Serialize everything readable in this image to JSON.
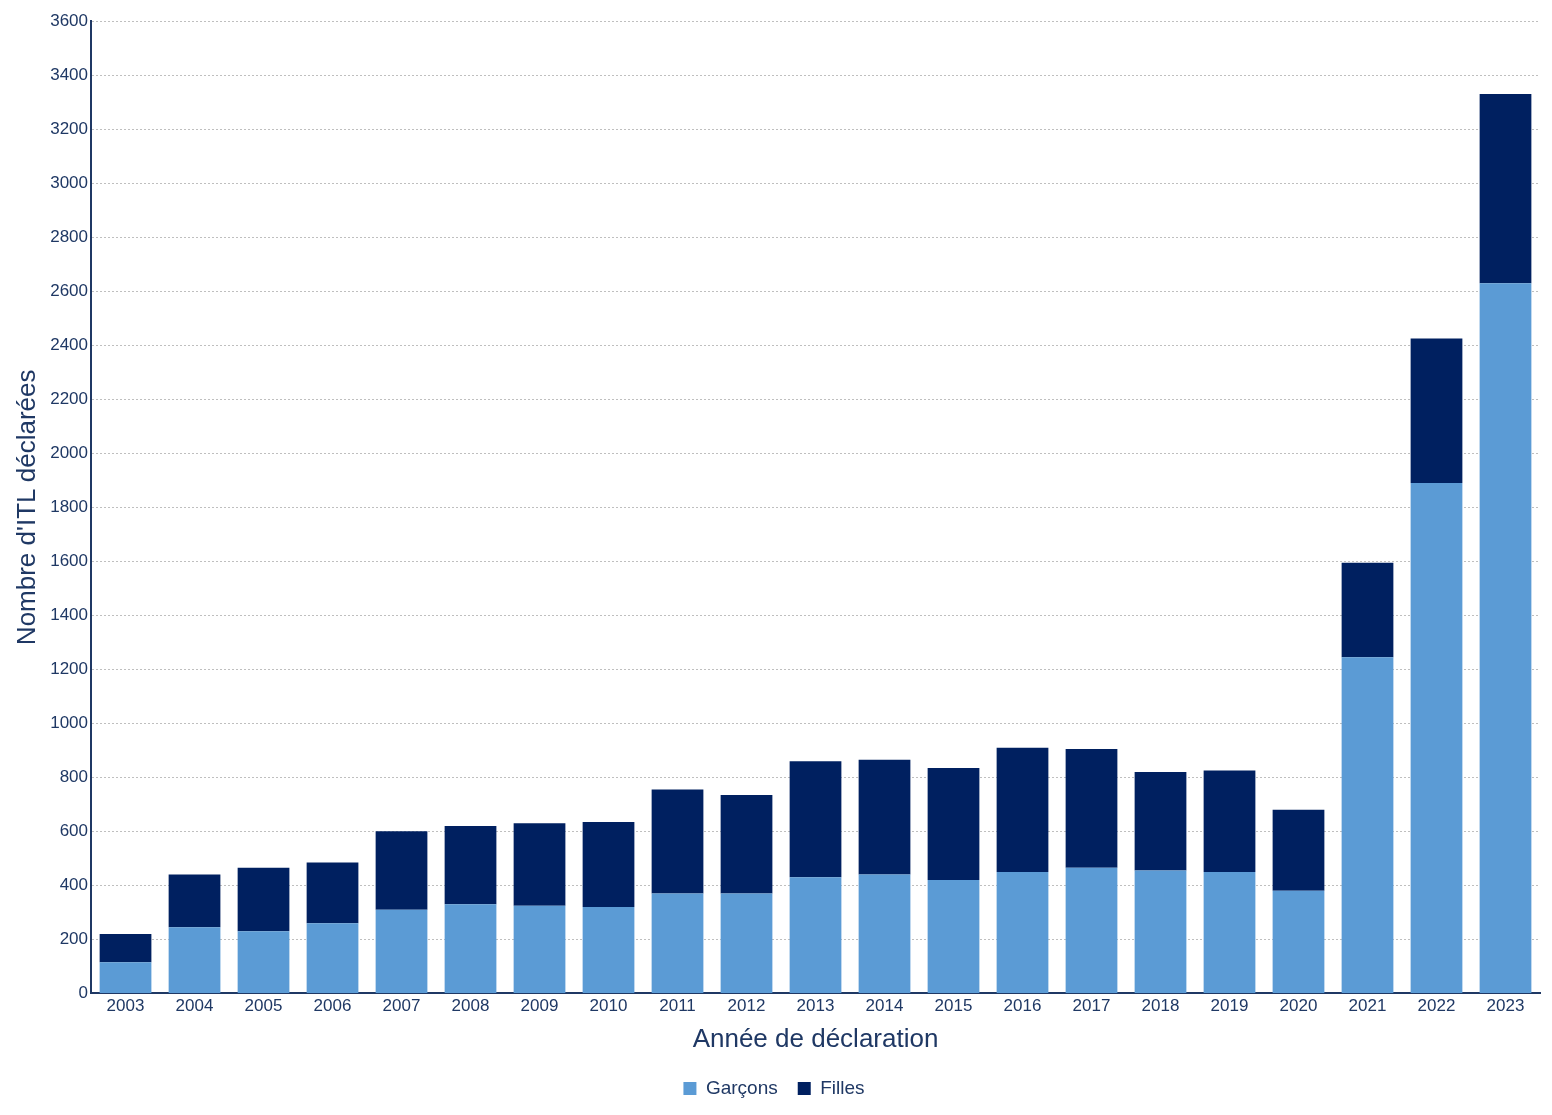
{
  "chart_data": {
    "type": "bar",
    "stacked": true,
    "xlabel": "Année de déclaration",
    "ylabel": "Nombre d'ITL déclarées",
    "categories": [
      "2003",
      "2004",
      "2005",
      "2006",
      "2007",
      "2008",
      "2009",
      "2010",
      "2011",
      "2012",
      "2013",
      "2014",
      "2015",
      "2016",
      "2017",
      "2018",
      "2019",
      "2020",
      "2021",
      "2022",
      "2023"
    ],
    "series": [
      {
        "name": "Garçons",
        "color": "#5b9bd5",
        "values": [
          115,
          245,
          230,
          260,
          310,
          330,
          325,
          320,
          370,
          370,
          430,
          440,
          420,
          450,
          465,
          455,
          450,
          380,
          1245,
          1890,
          2630
        ]
      },
      {
        "name": "Filles",
        "color": "#002060",
        "values": [
          105,
          195,
          235,
          225,
          290,
          290,
          305,
          315,
          385,
          365,
          430,
          425,
          415,
          460,
          440,
          365,
          375,
          300,
          350,
          535,
          700
        ]
      }
    ],
    "ylim": [
      0,
      3600
    ],
    "yticks": [
      0,
      200,
      400,
      600,
      800,
      1000,
      1200,
      1400,
      1600,
      1800,
      2000,
      2200,
      2400,
      2600,
      2800,
      3000,
      3200,
      3400,
      3600
    ],
    "grid": "y",
    "legend": "bottom"
  }
}
